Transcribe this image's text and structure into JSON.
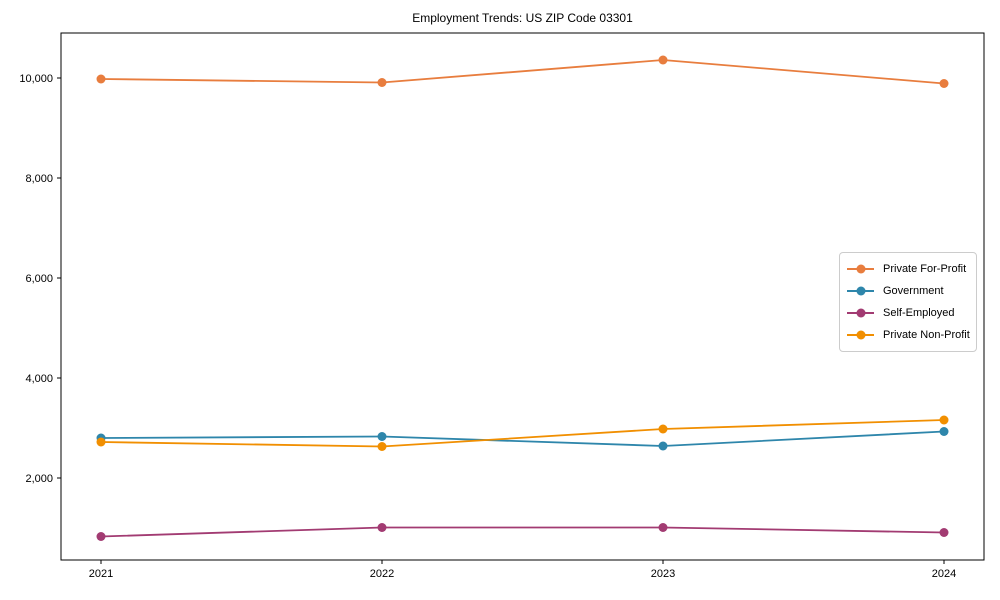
{
  "figure": {
    "title": "Employment Trends: US ZIP Code 03301"
  },
  "chart_data": {
    "type": "line",
    "title": "Employment Trends: US ZIP Code 03301",
    "xlabel": "",
    "ylabel": "",
    "x": [
      2021,
      2022,
      2023,
      2024
    ],
    "x_labels": [
      "2021",
      "2022",
      "2023",
      "2024"
    ],
    "series": [
      {
        "name": "Private For-Profit",
        "color": "#e87d3e",
        "values": [
          9980,
          9910,
          10360,
          9890
        ]
      },
      {
        "name": "Government",
        "color": "#2e86ab",
        "values": [
          2800,
          2830,
          2640,
          2930
        ]
      },
      {
        "name": "Self-Employed",
        "color": "#a23b72",
        "values": [
          830,
          1010,
          1010,
          910
        ]
      },
      {
        "name": "Private Non-Profit",
        "color": "#f18f01",
        "values": [
          2720,
          2630,
          2980,
          3160
        ]
      }
    ],
    "ylim": [
      360,
      10900
    ],
    "yticks": [
      2000,
      4000,
      6000,
      8000,
      10000
    ],
    "ytick_labels": [
      "2,000",
      "4,000",
      "6,000",
      "8,000",
      "10,000"
    ],
    "grid": false,
    "legend_position": "center right",
    "marker": "circle",
    "background": "#ffffff",
    "spine_color": "#000000"
  }
}
